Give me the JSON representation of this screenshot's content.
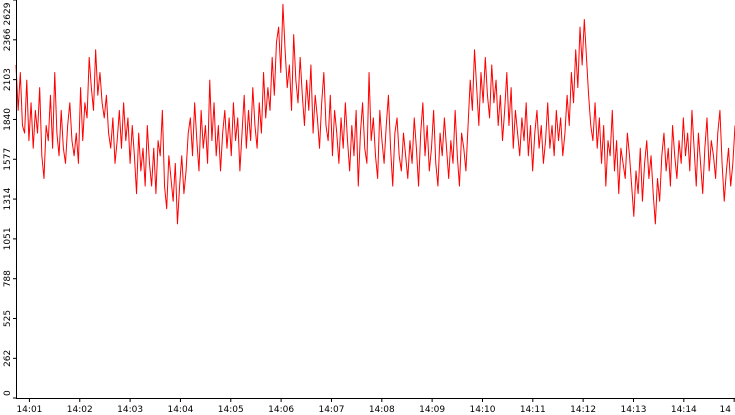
{
  "chart_data": {
    "type": "line",
    "title": "",
    "xlabel": "",
    "ylabel": "",
    "ylim": [
      0,
      2629
    ],
    "y_ticks": [
      0,
      262,
      525,
      788,
      1051,
      1314,
      1577,
      1840,
      2103,
      2366,
      2629
    ],
    "x_ticks": [
      "14:01",
      "14:02",
      "14:03",
      "14:04",
      "14:05",
      "14:06",
      "14:07",
      "14:08",
      "14:09",
      "14:10",
      "14:11",
      "14:12",
      "14:13",
      "14:14",
      "14"
    ],
    "grid": false,
    "legend": "none",
    "series": [
      {
        "color": "#ff0000",
        "x_range": [
          "14:00:44",
          "14:15:01"
        ],
        "values": [
          2200,
          1900,
          2150,
          1800,
          1750,
          2100,
          1700,
          1950,
          1650,
          1900,
          1750,
          2050,
          1600,
          1450,
          1800,
          1700,
          2000,
          1650,
          2150,
          1750,
          1600,
          1900,
          1650,
          1550,
          1800,
          1950,
          1700,
          1600,
          1750,
          1550,
          2050,
          1700,
          1950,
          1850,
          2250,
          2050,
          1900,
          2300,
          2000,
          2150,
          1950,
          1850,
          2000,
          1750,
          1650,
          1850,
          1550,
          1700,
          1900,
          1650,
          1950,
          1700,
          1850,
          1550,
          1800,
          1600,
          1350,
          1750,
          1500,
          1650,
          1400,
          1800,
          1550,
          1400,
          1650,
          1350,
          1700,
          1600,
          1900,
          1400,
          1250,
          1600,
          1450,
          1300,
          1550,
          1150,
          1400,
          1600,
          1350,
          1500,
          1750,
          1850,
          1600,
          1950,
          1700,
          1500,
          1900,
          1650,
          1800,
          1550,
          2100,
          1700,
          1950,
          1600,
          1800,
          1500,
          1750,
          1900,
          1650,
          1850,
          1600,
          1950,
          1700,
          1850,
          1500,
          1750,
          2000,
          1650,
          1900,
          1700,
          2050,
          1800,
          1650,
          1950,
          1750,
          2150,
          1850,
          2050,
          1900,
          2250,
          2000,
          2350,
          2450,
          2150,
          2600,
          2300,
          2050,
          2200,
          1900,
          2400,
          2100,
          1950,
          2250,
          2000,
          1800,
          2100,
          1900,
          2200,
          1750,
          2000,
          1850,
          1650,
          1950,
          2150,
          1800,
          1700,
          2000,
          1600,
          1900,
          1750,
          1550,
          1850,
          1650,
          1950,
          1700,
          1500,
          1800,
          1600,
          1900,
          1400,
          1750,
          1950,
          1650,
          1550,
          2150,
          1700,
          1850,
          1600,
          1450,
          1900,
          1700,
          1550,
          1800,
          2000,
          1650,
          1400,
          1750,
          1850,
          1600,
          1500,
          1750,
          1600,
          1450,
          1700,
          1550,
          1850,
          1650,
          1400,
          1750,
          1950,
          1600,
          1800,
          1500,
          1650,
          1900,
          1550,
          1400,
          1750,
          1600,
          1850,
          1650,
          1450,
          1700,
          1550,
          1900,
          1600,
          1400,
          1750,
          1650,
          1500,
          1800,
          2100,
          1900,
          2300,
          2050,
          1800,
          2150,
          1950,
          2250,
          2000,
          1850,
          2200,
          1950,
          2100,
          1800,
          2000,
          1700,
          1900,
          2150,
          1800,
          2050,
          1650,
          1900,
          1750,
          1600,
          1850,
          1700,
          1950,
          1600,
          1800,
          1500,
          1750,
          1900,
          1650,
          1800,
          1550,
          1700,
          1950,
          1650,
          1800,
          1600,
          1900,
          1700,
          1850,
          1600,
          1750,
          2000,
          1800,
          2150,
          1950,
          2300,
          2050,
          2450,
          2200,
          2500,
          2250,
          2000,
          1800,
          1700,
          1950,
          1650,
          1850,
          1550,
          1800,
          1400,
          1700,
          1600,
          1900,
          1500,
          1700,
          1350,
          1650,
          1550,
          1450,
          1750,
          1600,
          1400,
          1200,
          1500,
          1350,
          1650,
          1300,
          1550,
          1700,
          1450,
          1600,
          1350,
          1150,
          1450,
          1300,
          1600,
          1750,
          1500,
          1650,
          1400,
          1800,
          1600,
          1450,
          1700,
          1550,
          1850,
          1600,
          1750,
          1500,
          1900,
          1650,
          1400,
          1750,
          1550,
          1350,
          1650,
          1850,
          1500,
          1700,
          1600,
          1450,
          1750,
          1900,
          1550,
          1300,
          1500,
          1650,
          1400,
          1550,
          1800
        ]
      }
    ]
  }
}
